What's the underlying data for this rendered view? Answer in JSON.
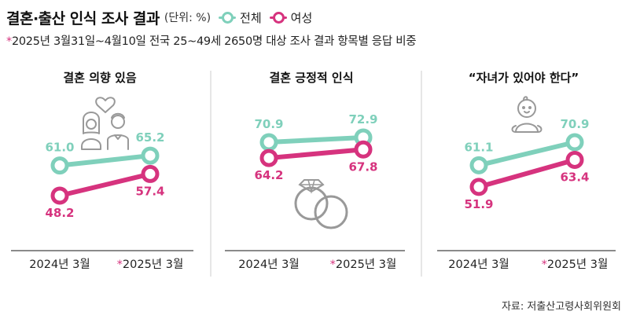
{
  "header": {
    "title": "결혼·출산 인식 조사 결과",
    "unit": "(단위: %)",
    "legend": [
      {
        "name": "전체",
        "color": "#7fd0bb"
      },
      {
        "name": "여성",
        "color": "#d6337e"
      }
    ],
    "subtitle_star": "*",
    "subtitle": "2025년 3월31일~4월10일 전국 25~49세 2650명 대상 조사 결과 항목별 응답 비중"
  },
  "source": "자료: 저출산고령사회위원회",
  "colors": {
    "total": "#7fd0bb",
    "female": "#d6337e",
    "divider": "#cccccc",
    "icon": "#999999"
  },
  "chart_data": [
    {
      "type": "line",
      "title": "결혼 의향 있음",
      "categories": [
        "2024년 3월",
        "*2025년 3월"
      ],
      "series": [
        {
          "name": "전체",
          "values": [
            61.0,
            65.2
          ]
        },
        {
          "name": "여성",
          "values": [
            48.2,
            57.4
          ]
        }
      ],
      "labels": {
        "전체": [
          "61.0",
          "65.2"
        ],
        "여성": [
          "48.2",
          "57.4"
        ]
      },
      "icon": "couple-heart-icon"
    },
    {
      "type": "line",
      "title": "결혼 긍정적 인식",
      "categories": [
        "2024년 3월",
        "*2025년 3월"
      ],
      "series": [
        {
          "name": "전체",
          "values": [
            70.9,
            72.9
          ]
        },
        {
          "name": "여성",
          "values": [
            64.2,
            67.8
          ]
        }
      ],
      "labels": {
        "전체": [
          "70.9",
          "72.9"
        ],
        "여성": [
          "64.2",
          "67.8"
        ]
      },
      "icon": "wedding-rings-icon"
    },
    {
      "type": "line",
      "title": "“자녀가 있어야 한다”",
      "categories": [
        "2024년 3월",
        "*2025년 3월"
      ],
      "series": [
        {
          "name": "전체",
          "values": [
            61.1,
            70.9
          ]
        },
        {
          "name": "여성",
          "values": [
            51.9,
            63.4
          ]
        }
      ],
      "labels": {
        "전체": [
          "61.1",
          "70.9"
        ],
        "여성": [
          "51.9",
          "63.4"
        ]
      },
      "icon": "baby-icon"
    }
  ]
}
